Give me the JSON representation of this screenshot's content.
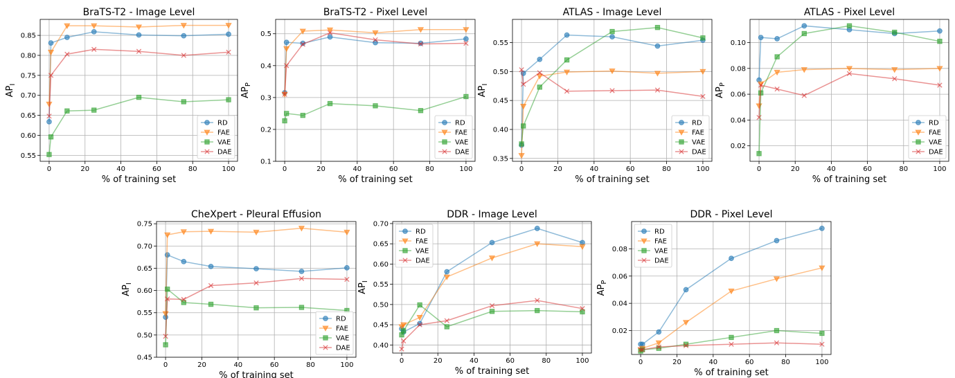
{
  "colors": {
    "RD": "#1f77b4",
    "FAE": "#ff7f0e",
    "VAE": "#2ca02c",
    "DAE": "#d62728"
  },
  "markers": {
    "RD": "circle",
    "FAE": "triangle-down",
    "VAE": "square",
    "DAE": "x"
  },
  "chart_data": [
    {
      "type": "line",
      "title": "BraTS-T2 - Image Level",
      "xlabel": "% of training set",
      "ylabel": "AP_I",
      "xlim": [
        -5,
        105
      ],
      "ylim": [
        0.535,
        0.89
      ],
      "xticks": [
        0,
        20,
        40,
        60,
        80,
        100
      ],
      "yticks": [
        0.55,
        0.6,
        0.65,
        0.7,
        0.75,
        0.8,
        0.85
      ],
      "ytick_labels": [
        "0.55",
        "0.60",
        "0.65",
        "0.70",
        "0.75",
        "0.80",
        "0.85"
      ],
      "legend": "lower-right",
      "grid": true,
      "x": [
        0,
        1,
        10,
        25,
        50,
        75,
        100
      ],
      "series": [
        {
          "name": "RD",
          "values": [
            0.634,
            0.831,
            0.845,
            0.859,
            0.851,
            0.849,
            0.853
          ]
        },
        {
          "name": "FAE",
          "values": [
            0.678,
            0.808,
            0.874,
            0.874,
            0.871,
            0.875,
            0.875
          ]
        },
        {
          "name": "VAE",
          "values": [
            0.552,
            0.596,
            0.661,
            0.663,
            0.695,
            0.684,
            0.689
          ]
        },
        {
          "name": "DAE",
          "values": [
            0.648,
            0.75,
            0.803,
            0.815,
            0.81,
            0.8,
            0.808
          ]
        }
      ]
    },
    {
      "type": "line",
      "title": "BraTS-T2 - Pixel Level",
      "xlabel": "% of training set",
      "ylabel": "AP_P",
      "xlim": [
        -5,
        105
      ],
      "ylim": [
        0.1,
        0.545
      ],
      "xticks": [
        0,
        20,
        40,
        60,
        80,
        100
      ],
      "yticks": [
        0.1,
        0.2,
        0.3,
        0.4,
        0.5
      ],
      "ytick_labels": [
        "0.1",
        "0.2",
        "0.3",
        "0.4",
        "0.5"
      ],
      "legend": "lower-right",
      "grid": true,
      "x": [
        0,
        1,
        10,
        25,
        50,
        75,
        100
      ],
      "series": [
        {
          "name": "RD",
          "values": [
            0.315,
            0.473,
            0.47,
            0.49,
            0.472,
            0.47,
            0.484
          ]
        },
        {
          "name": "FAE",
          "values": [
            0.31,
            0.453,
            0.508,
            0.512,
            0.503,
            0.513,
            0.513
          ]
        },
        {
          "name": "VAE",
          "values": [
            0.227,
            0.25,
            0.244,
            0.281,
            0.274,
            0.259,
            0.303
          ]
        },
        {
          "name": "DAE",
          "values": [
            0.31,
            0.4,
            0.467,
            0.503,
            0.481,
            0.468,
            0.47
          ]
        }
      ]
    },
    {
      "type": "line",
      "title": "ATLAS - Image Level",
      "xlabel": "% of training set",
      "ylabel": "AP_I",
      "xlim": [
        -5,
        105
      ],
      "ylim": [
        0.345,
        0.59
      ],
      "xticks": [
        0,
        20,
        40,
        60,
        80,
        100
      ],
      "yticks": [
        0.35,
        0.4,
        0.45,
        0.5,
        0.55
      ],
      "ytick_labels": [
        "0.35",
        "0.40",
        "0.45",
        "0.50",
        "0.55"
      ],
      "legend": "lower-right",
      "grid": true,
      "x": [
        0,
        1,
        10,
        25,
        50,
        75,
        100
      ],
      "series": [
        {
          "name": "RD",
          "values": [
            0.373,
            0.497,
            0.521,
            0.563,
            0.56,
            0.544,
            0.554
          ]
        },
        {
          "name": "FAE",
          "values": [
            0.355,
            0.44,
            0.492,
            0.499,
            0.501,
            0.497,
            0.5
          ]
        },
        {
          "name": "VAE",
          "values": [
            0.375,
            0.406,
            0.473,
            0.52,
            0.569,
            0.576,
            0.558
          ]
        },
        {
          "name": "DAE",
          "values": [
            0.503,
            0.478,
            0.498,
            0.466,
            0.467,
            0.468,
            0.457
          ]
        }
      ]
    },
    {
      "type": "line",
      "title": "ATLAS - Pixel Level",
      "xlabel": "% of training set",
      "ylabel": "AP_P",
      "xlim": [
        -5,
        105
      ],
      "ylim": [
        0.008,
        0.118
      ],
      "xticks": [
        0,
        20,
        40,
        60,
        80,
        100
      ],
      "yticks": [
        0.02,
        0.04,
        0.06,
        0.08,
        0.1
      ],
      "ytick_labels": [
        "0.02",
        "0.04",
        "0.06",
        "0.08",
        "0.10"
      ],
      "legend": "lower-right",
      "grid": true,
      "x": [
        0,
        1,
        10,
        25,
        50,
        75,
        100
      ],
      "series": [
        {
          "name": "RD",
          "values": [
            0.071,
            0.104,
            0.103,
            0.113,
            0.11,
            0.107,
            0.109
          ]
        },
        {
          "name": "FAE",
          "values": [
            0.051,
            0.068,
            0.077,
            0.079,
            0.08,
            0.079,
            0.08
          ]
        },
        {
          "name": "VAE",
          "values": [
            0.014,
            0.061,
            0.089,
            0.107,
            0.113,
            0.108,
            0.101
          ]
        },
        {
          "name": "DAE",
          "values": [
            0.042,
            0.067,
            0.064,
            0.059,
            0.076,
            0.072,
            0.067
          ]
        }
      ]
    },
    {
      "type": "line",
      "title": "CheXpert - Pleural Effusion",
      "xlabel": "% of training set",
      "ylabel": "AP_I",
      "xlim": [
        -5,
        105
      ],
      "ylim": [
        0.45,
        0.755
      ],
      "xticks": [
        0,
        20,
        40,
        60,
        80,
        100
      ],
      "yticks": [
        0.45,
        0.5,
        0.55,
        0.6,
        0.65,
        0.7,
        0.75
      ],
      "ytick_labels": [
        "0.45",
        "0.50",
        "0.55",
        "0.60",
        "0.65",
        "0.70",
        "0.75"
      ],
      "legend": "lower-right",
      "grid": true,
      "x": [
        0,
        1,
        10,
        25,
        50,
        75,
        100
      ],
      "series": [
        {
          "name": "RD",
          "values": [
            0.54,
            0.68,
            0.665,
            0.654,
            0.649,
            0.643,
            0.651
          ]
        },
        {
          "name": "FAE",
          "values": [
            0.548,
            0.725,
            0.732,
            0.733,
            0.731,
            0.74,
            0.731
          ]
        },
        {
          "name": "VAE",
          "values": [
            0.478,
            0.603,
            0.573,
            0.569,
            0.561,
            0.562,
            0.555
          ]
        },
        {
          "name": "DAE",
          "values": [
            0.497,
            0.581,
            0.58,
            0.611,
            0.617,
            0.627,
            0.625
          ]
        }
      ]
    },
    {
      "type": "line",
      "title": "DDR - Image Level",
      "xlabel": "% of training set",
      "ylabel": "AP_I",
      "xlim": [
        -5,
        105
      ],
      "ylim": [
        0.38,
        0.705
      ],
      "xticks": [
        0,
        20,
        40,
        60,
        80,
        100
      ],
      "yticks": [
        0.4,
        0.45,
        0.5,
        0.55,
        0.6,
        0.65,
        0.7
      ],
      "ytick_labels": [
        "0.40",
        "0.45",
        "0.50",
        "0.55",
        "0.60",
        "0.65",
        "0.70"
      ],
      "legend": "upper-left",
      "grid": true,
      "x": [
        0,
        1,
        10,
        25,
        50,
        75,
        100
      ],
      "series": [
        {
          "name": "RD",
          "values": [
            0.44,
            0.432,
            0.453,
            0.581,
            0.653,
            0.688,
            0.653
          ]
        },
        {
          "name": "FAE",
          "values": [
            0.445,
            0.45,
            0.468,
            0.568,
            0.615,
            0.65,
            0.643
          ]
        },
        {
          "name": "VAE",
          "values": [
            0.425,
            0.435,
            0.499,
            0.445,
            0.483,
            0.485,
            0.482
          ]
        },
        {
          "name": "DAE",
          "values": [
            0.39,
            0.41,
            0.45,
            0.46,
            0.497,
            0.51,
            0.49
          ]
        }
      ]
    },
    {
      "type": "line",
      "title": "DDR - Pixel Level",
      "xlabel": "% of training set",
      "ylabel": "AP_P",
      "xlim": [
        -5,
        105
      ],
      "ylim": [
        0.0025,
        0.1
      ],
      "xticks": [
        0,
        20,
        40,
        60,
        80,
        100
      ],
      "yticks": [
        0.02,
        0.04,
        0.06,
        0.08
      ],
      "ytick_labels": [
        "0.02",
        "0.04",
        "0.06",
        "0.08"
      ],
      "legend": "upper-left",
      "grid": true,
      "x": [
        0,
        1,
        10,
        25,
        50,
        75,
        100
      ],
      "series": [
        {
          "name": "RD",
          "values": [
            0.01,
            0.01,
            0.019,
            0.05,
            0.073,
            0.086,
            0.095
          ]
        },
        {
          "name": "FAE",
          "values": [
            0.006,
            0.007,
            0.011,
            0.026,
            0.049,
            0.058,
            0.066
          ]
        },
        {
          "name": "VAE",
          "values": [
            0.005,
            0.006,
            0.007,
            0.01,
            0.015,
            0.02,
            0.018
          ]
        },
        {
          "name": "DAE",
          "values": [
            0.006,
            0.006,
            0.008,
            0.009,
            0.01,
            0.011,
            0.01
          ]
        }
      ]
    }
  ]
}
